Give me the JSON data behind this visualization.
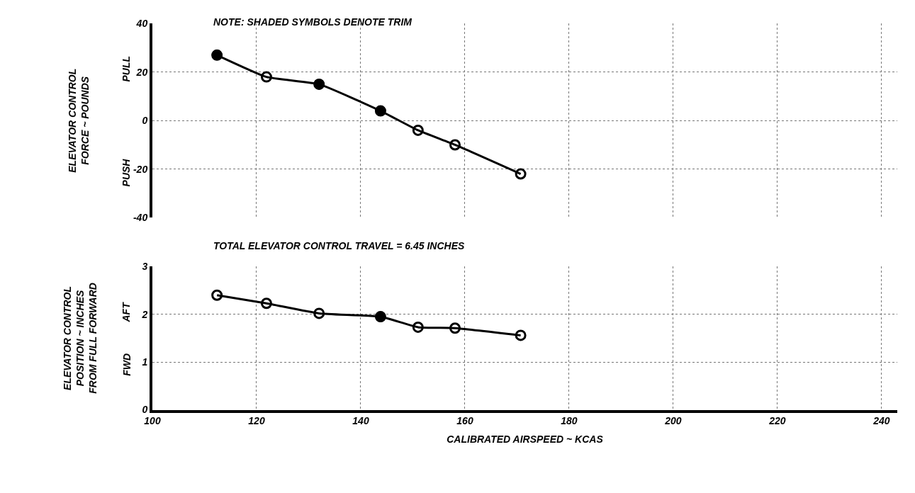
{
  "chart_data": [
    {
      "type": "line",
      "ylabel": "ELEVATOR CONTROL\nFORCE ~ POUNDS",
      "xlim": [
        100,
        243
      ],
      "xticks": [
        100,
        120,
        140,
        160,
        180,
        200,
        220,
        240
      ],
      "ylim": [
        -40,
        40
      ],
      "yticks": [
        -40,
        -20,
        0,
        20,
        40
      ],
      "tick_labels": "y",
      "grid": true,
      "line_style": "solid",
      "annotations": [
        "NOTE: SHADED SYMBOLS DENOTE TRIM",
        "PULL",
        "PUSH"
      ],
      "series": [
        {
          "color": "#000000",
          "marker": "circle",
          "x": [
            112.4,
            121.9,
            132,
            143.8,
            151,
            158.1,
            170.7
          ],
          "values": [
            27,
            18,
            15,
            4,
            -4,
            -10,
            -22
          ]
        },
        {
          "type": "scatter",
          "color": "#000000",
          "marker": "circle",
          "x": [
            112.4,
            132,
            143.8
          ],
          "values": [
            27,
            15,
            4
          ]
        }
      ]
    },
    {
      "type": "line",
      "xlabel": "CALIBRATED AIRSPEED ~ KCAS",
      "ylabel": "ELEVATOR CONTROL\nPOSITION ~ INCHES\nFROM FULL FORWARD",
      "xlim": [
        100,
        243
      ],
      "xticks": [
        100,
        120,
        140,
        160,
        180,
        200,
        220,
        240
      ],
      "ylim": [
        0,
        3
      ],
      "yticks": [
        0,
        1,
        2,
        3
      ],
      "grid": true,
      "line_style": "solid",
      "annotations": [
        "TOTAL ELEVATOR CONTROL TRAVEL = 6.45 INCHES",
        "AFT",
        "FWD"
      ],
      "series": [
        {
          "color": "#000000",
          "marker": "circle",
          "x": [
            112.4,
            121.9,
            132,
            143.8,
            151,
            158.1,
            170.7
          ],
          "values": [
            2.4,
            2.23,
            2.02,
            1.95,
            1.73,
            1.71,
            1.56
          ]
        },
        {
          "type": "scatter",
          "color": "#000000",
          "marker": "circle",
          "x": [
            143.8
          ],
          "values": [
            1.95
          ]
        }
      ]
    }
  ]
}
